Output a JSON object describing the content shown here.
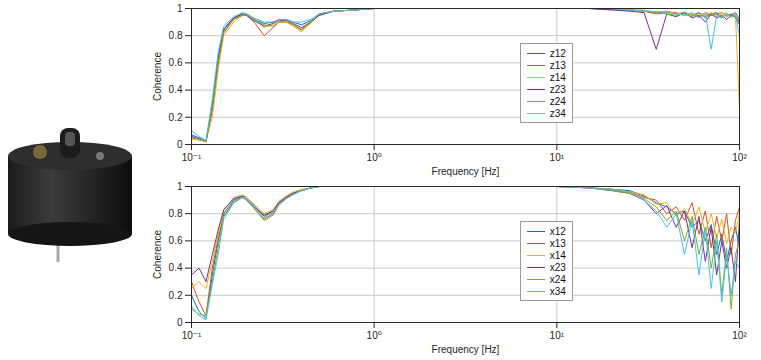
{
  "chart_data": [
    {
      "type": "line",
      "xlabel": "Frequency [Hz]",
      "ylabel": "Coherence",
      "log": "x",
      "grid": true,
      "legend": "center",
      "xlim": [
        0.1,
        100
      ],
      "ylim": [
        0,
        1
      ],
      "xticks": [
        {
          "value": 0.1,
          "label": "10⁻¹"
        },
        {
          "value": 1,
          "label": "10⁰"
        },
        {
          "value": 10,
          "label": "10¹"
        },
        {
          "value": 100,
          "label": "10²"
        }
      ],
      "yticks": [
        0,
        0.2,
        0.4,
        0.6,
        0.8,
        1
      ],
      "x": [
        0.1,
        0.11,
        0.12,
        0.13,
        0.14,
        0.15,
        0.17,
        0.19,
        0.2,
        0.22,
        0.25,
        0.28,
        0.3,
        0.33,
        0.36,
        0.4,
        0.45,
        0.5,
        0.6,
        0.8,
        1,
        2,
        5,
        10,
        15,
        20,
        25,
        30,
        35,
        40,
        45,
        50,
        55,
        60,
        65,
        70,
        75,
        80,
        85,
        90,
        95,
        100
      ],
      "series": [
        {
          "name": "z12",
          "color": "#0072BD",
          "values": [
            0.07,
            0.05,
            0.02,
            0.3,
            0.65,
            0.85,
            0.93,
            0.96,
            0.96,
            0.92,
            0.89,
            0.9,
            0.91,
            0.92,
            0.9,
            0.88,
            0.91,
            0.95,
            0.98,
            0.99,
            1,
            1,
            1,
            1,
            1,
            0.99,
            0.99,
            0.98,
            0.97,
            0.98,
            0.96,
            0.97,
            0.95,
            0.97,
            0.94,
            0.96,
            0.97,
            0.93,
            0.96,
            0.95,
            0.97,
            0.92
          ]
        },
        {
          "name": "z13",
          "color": "#D95319",
          "values": [
            0.05,
            0.04,
            0.02,
            0.25,
            0.6,
            0.82,
            0.92,
            0.95,
            0.95,
            0.9,
            0.8,
            0.86,
            0.9,
            0.9,
            0.88,
            0.84,
            0.9,
            0.96,
            0.98,
            0.99,
            1,
            1,
            1,
            1,
            1,
            1,
            0.99,
            0.98,
            0.96,
            0.97,
            0.97,
            0.95,
            0.96,
            0.94,
            0.97,
            0.95,
            0.96,
            0.97,
            0.94,
            0.96,
            0.95,
            0.9
          ]
        },
        {
          "name": "z14",
          "color": "#EDB120",
          "values": [
            0.04,
            0.03,
            0.03,
            0.2,
            0.55,
            0.8,
            0.9,
            0.95,
            0.96,
            0.93,
            0.86,
            0.88,
            0.91,
            0.9,
            0.87,
            0.83,
            0.89,
            0.96,
            0.98,
            0.99,
            1,
            1,
            1,
            1,
            1,
            1,
            0.99,
            0.99,
            0.97,
            0.98,
            0.96,
            0.97,
            0.95,
            0.96,
            0.95,
            0.97,
            0.94,
            0.96,
            0.97,
            0.93,
            0.96,
            0.25
          ]
        },
        {
          "name": "z23",
          "color": "#7E2F8E",
          "values": [
            0.06,
            0.04,
            0.02,
            0.28,
            0.62,
            0.84,
            0.93,
            0.96,
            0.95,
            0.91,
            0.87,
            0.89,
            0.92,
            0.91,
            0.89,
            0.86,
            0.9,
            0.95,
            0.98,
            0.99,
            1,
            1,
            1,
            1,
            1,
            0.99,
            0.98,
            0.97,
            0.7,
            0.96,
            0.94,
            0.97,
            0.93,
            0.95,
            0.9,
            0.96,
            0.93,
            0.95,
            0.92,
            0.95,
            0.94,
            0.88
          ]
        },
        {
          "name": "z24",
          "color": "#77AC30",
          "values": [
            0.05,
            0.04,
            0.02,
            0.27,
            0.6,
            0.83,
            0.92,
            0.95,
            0.96,
            0.92,
            0.88,
            0.87,
            0.9,
            0.91,
            0.88,
            0.85,
            0.9,
            0.96,
            0.98,
            0.99,
            1,
            1,
            1,
            1,
            1,
            1,
            0.99,
            0.98,
            0.97,
            0.96,
            0.95,
            0.96,
            0.94,
            0.97,
            0.93,
            0.95,
            0.96,
            0.94,
            0.95,
            0.96,
            0.93,
            0.92
          ]
        },
        {
          "name": "z34",
          "color": "#4DBEEE",
          "values": [
            0.1,
            0.06,
            0.03,
            0.33,
            0.68,
            0.87,
            0.94,
            0.97,
            0.96,
            0.93,
            0.9,
            0.9,
            0.92,
            0.92,
            0.9,
            0.9,
            0.92,
            0.96,
            0.98,
            0.99,
            1,
            1,
            1,
            1,
            1,
            1,
            0.99,
            0.98,
            0.98,
            0.97,
            0.96,
            0.95,
            0.97,
            0.93,
            0.96,
            0.7,
            0.95,
            0.93,
            0.96,
            0.94,
            0.95,
            0.8
          ]
        }
      ]
    },
    {
      "type": "line",
      "xlabel": "Frequency [Hz]",
      "ylabel": "Coherence",
      "log": "x",
      "grid": true,
      "legend": "center",
      "xlim": [
        0.1,
        100
      ],
      "ylim": [
        0,
        1
      ],
      "xticks": [
        {
          "value": 0.1,
          "label": "10⁻¹"
        },
        {
          "value": 1,
          "label": "10⁰"
        },
        {
          "value": 10,
          "label": "10¹"
        },
        {
          "value": 100,
          "label": "10²"
        }
      ],
      "yticks": [
        0,
        0.2,
        0.4,
        0.6,
        0.8,
        1
      ],
      "x": [
        0.1,
        0.11,
        0.12,
        0.13,
        0.14,
        0.15,
        0.17,
        0.19,
        0.2,
        0.22,
        0.25,
        0.28,
        0.3,
        0.33,
        0.36,
        0.4,
        0.45,
        0.5,
        0.6,
        0.8,
        1,
        2,
        5,
        10,
        15,
        20,
        25,
        30,
        35,
        40,
        45,
        50,
        55,
        60,
        65,
        70,
        75,
        80,
        85,
        90,
        95,
        100
      ],
      "series": [
        {
          "name": "x12",
          "color": "#0072BD",
          "values": [
            0.2,
            0.08,
            0.03,
            0.35,
            0.6,
            0.8,
            0.9,
            0.93,
            0.92,
            0.86,
            0.78,
            0.82,
            0.88,
            0.92,
            0.95,
            0.97,
            0.99,
            1,
            1,
            1,
            1,
            1,
            1,
            1,
            0.99,
            0.98,
            0.97,
            0.93,
            0.88,
            0.85,
            0.8,
            0.82,
            0.7,
            0.75,
            0.6,
            0.72,
            0.5,
            0.65,
            0.45,
            0.6,
            0.7,
            0.55
          ]
        },
        {
          "name": "x13",
          "color": "#D95319",
          "values": [
            0.3,
            0.15,
            0.05,
            0.4,
            0.62,
            0.78,
            0.88,
            0.92,
            0.91,
            0.84,
            0.76,
            0.8,
            0.87,
            0.92,
            0.95,
            0.97,
            0.99,
            1,
            1,
            1,
            1,
            1,
            1,
            1,
            0.99,
            0.98,
            0.96,
            0.92,
            0.9,
            0.8,
            0.85,
            0.75,
            0.88,
            0.65,
            0.82,
            0.55,
            0.78,
            0.6,
            0.8,
            0.5,
            0.75,
            0.85
          ]
        },
        {
          "name": "x14",
          "color": "#EDB120",
          "values": [
            0.25,
            0.3,
            0.25,
            0.45,
            0.65,
            0.82,
            0.92,
            0.94,
            0.92,
            0.87,
            0.8,
            0.83,
            0.89,
            0.93,
            0.96,
            0.98,
            0.99,
            1,
            1,
            1,
            1,
            1,
            1,
            1,
            0.99,
            0.98,
            0.96,
            0.94,
            0.87,
            0.88,
            0.78,
            0.84,
            0.72,
            0.85,
            0.66,
            0.8,
            0.62,
            0.76,
            0.58,
            0.7,
            0.66,
            0.8
          ]
        },
        {
          "name": "x23",
          "color": "#7E2F8E",
          "values": [
            0.35,
            0.4,
            0.3,
            0.5,
            0.68,
            0.83,
            0.91,
            0.93,
            0.9,
            0.85,
            0.79,
            0.82,
            0.88,
            0.92,
            0.95,
            0.97,
            0.99,
            1,
            1,
            1,
            1,
            1,
            1,
            1,
            0.99,
            0.97,
            0.95,
            0.9,
            0.8,
            0.86,
            0.7,
            0.82,
            0.55,
            0.78,
            0.45,
            0.7,
            0.35,
            0.6,
            0.4,
            0.55,
            0.3,
            0.75
          ]
        },
        {
          "name": "x24",
          "color": "#77AC30",
          "values": [
            0.1,
            0.06,
            0.05,
            0.3,
            0.55,
            0.78,
            0.89,
            0.92,
            0.9,
            0.84,
            0.75,
            0.79,
            0.86,
            0.91,
            0.94,
            0.97,
            0.99,
            1,
            1,
            1,
            1,
            1,
            1,
            1,
            0.99,
            0.97,
            0.95,
            0.91,
            0.85,
            0.75,
            0.82,
            0.6,
            0.78,
            0.5,
            0.7,
            0.4,
            0.65,
            0.2,
            0.55,
            0.1,
            0.5,
            0.6
          ]
        },
        {
          "name": "x34",
          "color": "#4DBEEE",
          "values": [
            0.12,
            0.05,
            0.02,
            0.28,
            0.5,
            0.76,
            0.88,
            0.92,
            0.91,
            0.85,
            0.77,
            0.81,
            0.87,
            0.91,
            0.94,
            0.97,
            0.99,
            1,
            1,
            1,
            1,
            1,
            1,
            1,
            0.99,
            0.98,
            0.96,
            0.9,
            0.82,
            0.7,
            0.8,
            0.5,
            0.75,
            0.35,
            0.68,
            0.25,
            0.6,
            0.15,
            0.5,
            0.2,
            0.45,
            0.4
          ]
        }
      ]
    }
  ]
}
